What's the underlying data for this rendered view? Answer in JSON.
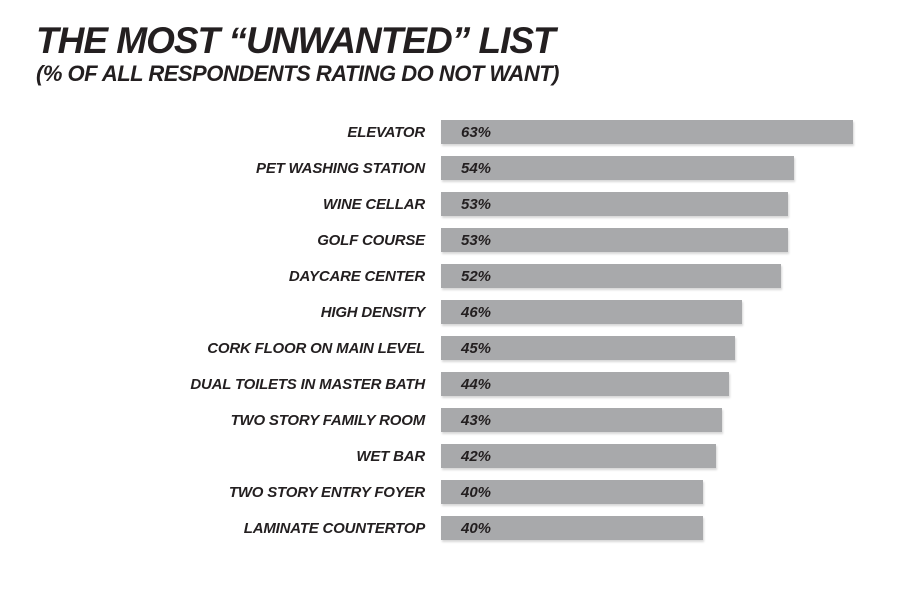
{
  "header": {
    "title": "THE MOST “UNWANTED” LIST",
    "subtitle": "(% OF ALL RESPONDENTS RATING DO NOT WANT)"
  },
  "colors": {
    "bar": "#a8a9ab",
    "ink": "#231f20",
    "background": "#ffffff"
  },
  "chart_data": {
    "type": "bar",
    "orientation": "horizontal",
    "title": "THE MOST “UNWANTED” LIST",
    "subtitle": "(% OF ALL RESPONDENTS RATING DO NOT WANT)",
    "categories": [
      "ELEVATOR",
      "PET WASHING STATION",
      "WINE CELLAR",
      "GOLF COURSE",
      "DAYCARE CENTER",
      "HIGH DENSITY",
      "CORK FLOOR ON MAIN LEVEL",
      "DUAL TOILETS IN MASTER BATH",
      "TWO STORY FAMILY ROOM",
      "WET BAR",
      "TWO STORY ENTRY FOYER",
      "LAMINATE COUNTERTOP"
    ],
    "values": [
      63,
      54,
      53,
      53,
      52,
      46,
      45,
      44,
      43,
      42,
      40,
      40
    ],
    "value_labels": [
      "63%",
      "54%",
      "53%",
      "53%",
      "52%",
      "46%",
      "45%",
      "44%",
      "43%",
      "42%",
      "40%",
      "40%"
    ],
    "value_suffix": "%",
    "xlim": [
      0,
      63
    ],
    "value_label_position": "inside-left",
    "grid": false,
    "legend": false,
    "bar_color": "#a8a9ab"
  }
}
